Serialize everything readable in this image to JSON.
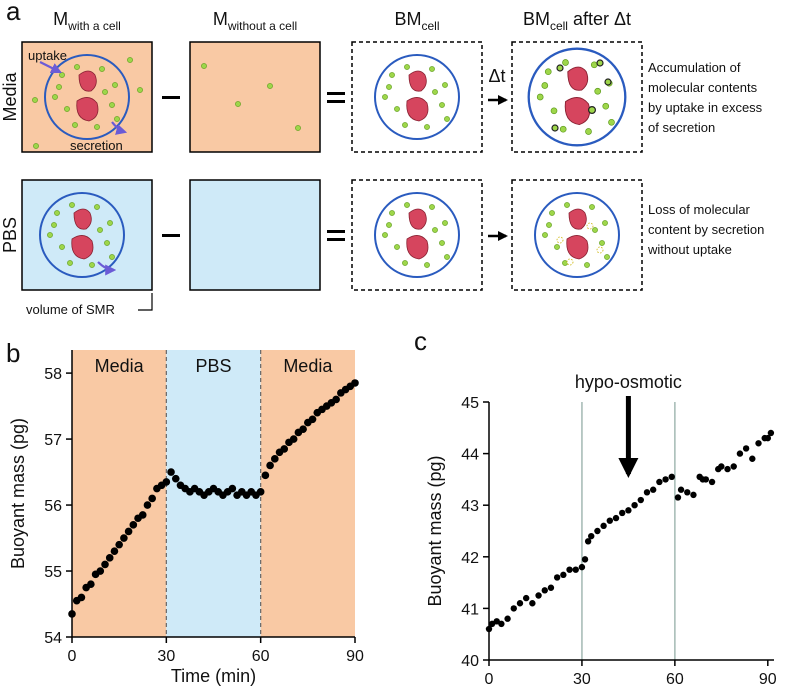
{
  "panel_labels": [
    "a",
    "b",
    "c"
  ],
  "panel_a": {
    "columns": [
      {
        "main": "M",
        "sub": "with a cell"
      },
      {
        "main": "M",
        "sub": "without a cell"
      },
      {
        "main": "BM",
        "sub": "cell"
      },
      {
        "main": "BM",
        "sub": "cell",
        "suffix": "after Δt"
      }
    ],
    "rows": [
      {
        "label": "Media",
        "note": [
          "Accumulation of",
          "molecular contents",
          "by uptake in excess",
          "of secretion"
        ]
      },
      {
        "label": "PBS",
        "note": [
          "Loss of molecular",
          "content by secretion",
          "without uptake"
        ]
      }
    ],
    "uptake": "uptake",
    "secretion": "secretion",
    "delta_t": "Δt",
    "volume": "volume of SMR"
  },
  "chart_data": [
    {
      "type": "scatter",
      "xlabel": "Time (min)",
      "ylabel": "Buoyant mass (pg)",
      "color": "#000000",
      "xlim": [
        0,
        90
      ],
      "ylim": [
        54,
        58.35
      ],
      "xticks": [
        0,
        30,
        60,
        90
      ],
      "yticks": [
        54,
        55,
        56,
        57,
        58
      ],
      "regions": [
        {
          "label": "Media",
          "start": 0,
          "end": 30,
          "color": "#f9c9a4"
        },
        {
          "label": "PBS",
          "start": 30,
          "end": 60,
          "color": "#cfeaf8"
        },
        {
          "label": "Media",
          "start": 60,
          "end": 90,
          "color": "#f9c9a4"
        }
      ],
      "vlines": [
        30,
        60
      ],
      "vline_color": "#666666",
      "x": [
        0,
        1.5,
        3,
        4.5,
        6,
        7.5,
        9,
        10.5,
        12,
        13.5,
        15,
        16.5,
        18,
        19.5,
        21,
        22.5,
        24,
        25.5,
        27,
        28.5,
        30,
        31.5,
        33,
        34.5,
        36,
        37.5,
        39,
        40.5,
        42,
        43.5,
        45,
        46.5,
        48,
        49.5,
        51,
        52.5,
        54,
        55.5,
        57,
        58.5,
        60,
        61.5,
        63,
        64.5,
        66,
        67.5,
        69,
        70.5,
        72,
        73.5,
        75,
        76.5,
        78,
        79.5,
        81,
        82.5,
        84,
        85.5,
        87,
        88.5,
        90
      ],
      "values": [
        54.35,
        54.55,
        54.6,
        54.75,
        54.8,
        54.95,
        55.0,
        55.1,
        55.2,
        55.3,
        55.4,
        55.5,
        55.6,
        55.7,
        55.8,
        55.85,
        56.0,
        56.1,
        56.25,
        56.3,
        56.35,
        56.5,
        56.4,
        56.3,
        56.25,
        56.2,
        56.25,
        56.2,
        56.15,
        56.2,
        56.25,
        56.2,
        56.15,
        56.2,
        56.25,
        56.15,
        56.2,
        56.15,
        56.2,
        56.15,
        56.2,
        56.45,
        56.6,
        56.7,
        56.8,
        56.85,
        56.95,
        57.0,
        57.1,
        57.15,
        57.25,
        57.3,
        57.4,
        57.45,
        57.5,
        57.55,
        57.6,
        57.7,
        57.75,
        57.8,
        57.85
      ]
    },
    {
      "type": "scatter",
      "xlabel": "Time (min)",
      "ylabel": "Buoyant mass (pg)",
      "color": "#000000",
      "xlim": [
        0,
        92
      ],
      "ylim": [
        40,
        45
      ],
      "xticks": [
        0,
        30,
        60,
        90
      ],
      "yticks": [
        40,
        41,
        42,
        43,
        44,
        45
      ],
      "vlines": [
        30,
        60
      ],
      "vline_color": "#a9bdb8",
      "annotation": {
        "text": "hypo-osmotic",
        "x": 45
      },
      "x": [
        0,
        1,
        2.5,
        4,
        6,
        8,
        10,
        12,
        14,
        16,
        18,
        20,
        22,
        24,
        26,
        28,
        30,
        31,
        32,
        33,
        35,
        37,
        39,
        41,
        43,
        45,
        47,
        49,
        51,
        53,
        55,
        57,
        59,
        61,
        62,
        64,
        66,
        68,
        69,
        70,
        72,
        74,
        75,
        77,
        79,
        81,
        83,
        85,
        87,
        89,
        90,
        91
      ],
      "values": [
        40.6,
        40.7,
        40.75,
        40.7,
        40.8,
        41.0,
        41.1,
        41.2,
        41.1,
        41.25,
        41.35,
        41.4,
        41.6,
        41.65,
        41.75,
        41.75,
        41.8,
        41.95,
        42.3,
        42.4,
        42.5,
        42.6,
        42.7,
        42.75,
        42.85,
        42.9,
        43.0,
        43.1,
        43.25,
        43.3,
        43.45,
        43.5,
        43.55,
        43.15,
        43.3,
        43.25,
        43.2,
        43.55,
        43.5,
        43.5,
        43.45,
        43.7,
        43.75,
        43.7,
        43.75,
        44.0,
        44.1,
        43.9,
        44.2,
        44.3,
        44.3,
        44.4
      ]
    }
  ]
}
